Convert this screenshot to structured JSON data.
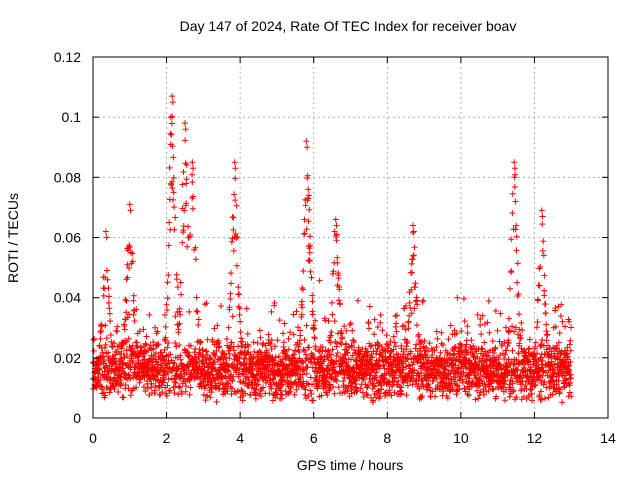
{
  "chart_data": {
    "type": "scatter",
    "title": "Day 147 of 2024, Rate Of TEC Index for receiver boav",
    "xlabel": "GPS time / hours",
    "ylabel": "ROTI / TECUs",
    "xlim": [
      0,
      14
    ],
    "ylim": [
      0,
      0.12
    ],
    "xticks": [
      "0",
      "2",
      "4",
      "6",
      "8",
      "10",
      "12",
      "14"
    ],
    "xtick_values": [
      0,
      2,
      4,
      6,
      8,
      10,
      12,
      14
    ],
    "yticks": [
      "0",
      "0.02",
      "0.04",
      "0.06",
      "0.08",
      "0.1",
      "0.12"
    ],
    "ytick_values": [
      0,
      0.02,
      0.04,
      0.06,
      0.08,
      0.1,
      0.12
    ],
    "grid": true,
    "marker": "+",
    "color": "#ff0000",
    "series": [
      {
        "name": "ROTI",
        "x_range": [
          0,
          13.0
        ],
        "baseline_range": [
          0.005,
          0.03
        ],
        "typical_value": 0.016,
        "peaks": [
          {
            "x": 0.35,
            "y": 0.062
          },
          {
            "x": 1.0,
            "y": 0.071
          },
          {
            "x": 2.15,
            "y": 0.107
          },
          {
            "x": 2.5,
            "y": 0.098
          },
          {
            "x": 2.7,
            "y": 0.085
          },
          {
            "x": 3.85,
            "y": 0.085
          },
          {
            "x": 5.8,
            "y": 0.092
          },
          {
            "x": 5.85,
            "y": 0.076
          },
          {
            "x": 6.6,
            "y": 0.066
          },
          {
            "x": 8.7,
            "y": 0.064
          },
          {
            "x": 11.45,
            "y": 0.085
          },
          {
            "x": 12.2,
            "y": 0.069
          }
        ]
      }
    ]
  }
}
